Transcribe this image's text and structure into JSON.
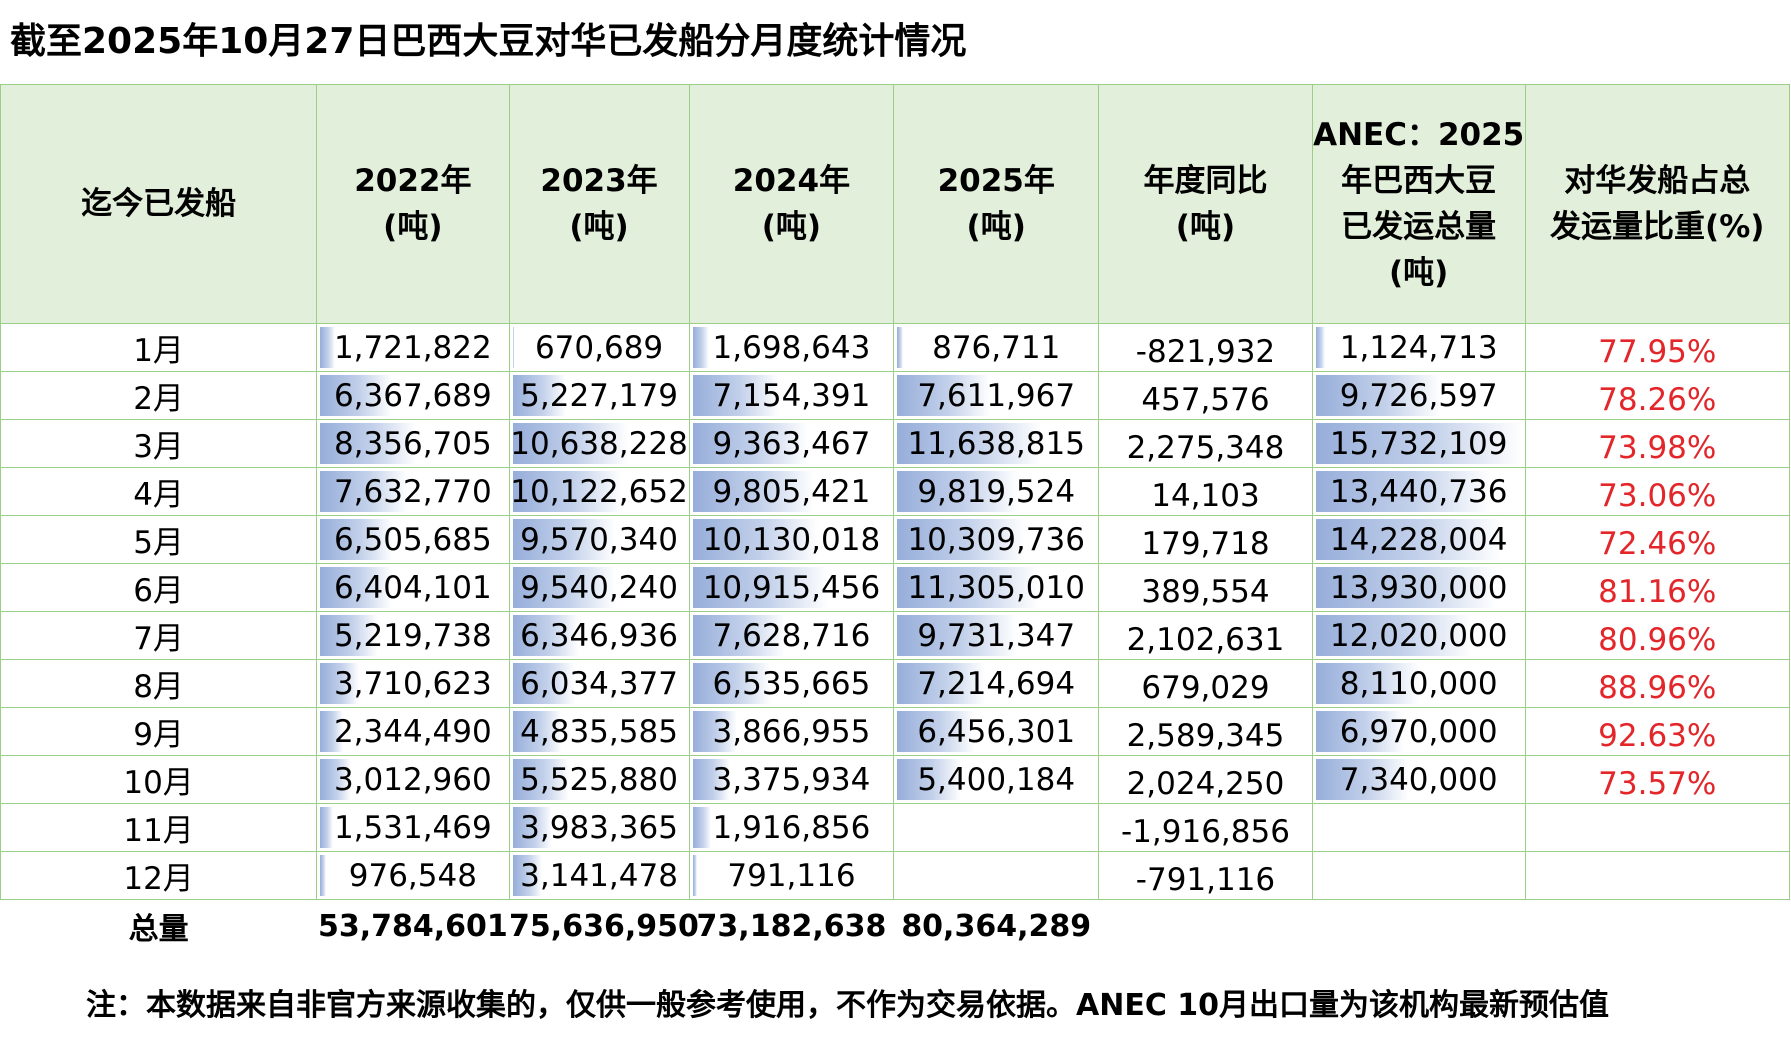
{
  "title": "截至2025年10月27日巴西大豆对华已发船分月度统计情况",
  "headers": [
    [
      "迄今已发船"
    ],
    [
      "2022年",
      "(吨)"
    ],
    [
      "2023年",
      "(吨)"
    ],
    [
      "2024年",
      "(吨)"
    ],
    [
      "2025年",
      "(吨)"
    ],
    [
      "年度同比",
      "(吨)"
    ],
    [
      "ANEC：2025",
      "年巴西大豆",
      "已发运总量",
      "(吨)"
    ],
    [
      "对华发船占总",
      "发运量比重(%)"
    ]
  ],
  "rows": [
    {
      "month": "1月",
      "y2022": "1,721,822",
      "y2023": "670,689",
      "y2024": "1,698,643",
      "y2025": "876,711",
      "yoy": "-821,932",
      "anec": "1,124,713",
      "pct": "77.95%"
    },
    {
      "month": "2月",
      "y2022": "6,367,689",
      "y2023": "5,227,179",
      "y2024": "7,154,391",
      "y2025": "7,611,967",
      "yoy": "457,576",
      "anec": "9,726,597",
      "pct": "78.26%"
    },
    {
      "month": "3月",
      "y2022": "8,356,705",
      "y2023": "10,638,228",
      "y2024": "9,363,467",
      "y2025": "11,638,815",
      "yoy": "2,275,348",
      "anec": "15,732,109",
      "pct": "73.98%"
    },
    {
      "month": "4月",
      "y2022": "7,632,770",
      "y2023": "10,122,652",
      "y2024": "9,805,421",
      "y2025": "9,819,524",
      "yoy": "14,103",
      "anec": "13,440,736",
      "pct": "73.06%"
    },
    {
      "month": "5月",
      "y2022": "6,505,685",
      "y2023": "9,570,340",
      "y2024": "10,130,018",
      "y2025": "10,309,736",
      "yoy": "179,718",
      "anec": "14,228,004",
      "pct": "72.46%"
    },
    {
      "month": "6月",
      "y2022": "6,404,101",
      "y2023": "9,540,240",
      "y2024": "10,915,456",
      "y2025": "11,305,010",
      "yoy": "389,554",
      "anec": "13,930,000",
      "pct": "81.16%"
    },
    {
      "month": "7月",
      "y2022": "5,219,738",
      "y2023": "6,346,936",
      "y2024": "7,628,716",
      "y2025": "9,731,347",
      "yoy": "2,102,631",
      "anec": "12,020,000",
      "pct": "80.96%"
    },
    {
      "month": "8月",
      "y2022": "3,710,623",
      "y2023": "6,034,377",
      "y2024": "6,535,665",
      "y2025": "7,214,694",
      "yoy": "679,029",
      "anec": "8,110,000",
      "pct": "88.96%"
    },
    {
      "month": "9月",
      "y2022": "2,344,490",
      "y2023": "4,835,585",
      "y2024": "3,866,955",
      "y2025": "6,456,301",
      "yoy": "2,589,345",
      "anec": "6,970,000",
      "pct": "92.63%"
    },
    {
      "month": "10月",
      "y2022": "3,012,960",
      "y2023": "5,525,880",
      "y2024": "3,375,934",
      "y2025": "5,400,184",
      "yoy": "2,024,250",
      "anec": "7,340,000",
      "pct": "73.57%"
    },
    {
      "month": "11月",
      "y2022": "1,531,469",
      "y2023": "3,983,365",
      "y2024": "1,916,856",
      "y2025": "",
      "yoy": "-1,916,856",
      "anec": "",
      "pct": ""
    },
    {
      "month": "12月",
      "y2022": "976,548",
      "y2023": "3,141,478",
      "y2024": "791,116",
      "y2025": "",
      "yoy": "-791,116",
      "anec": "",
      "pct": ""
    }
  ],
  "total": {
    "label": "总量",
    "y2022": "53,784,601",
    "y2023": "75,636,950",
    "y2024": "73,182,638",
    "y2025": "80,364,289"
  },
  "note": "注：本数据来自非官方来源收集的，仅供一般参考使用，不作为交易依据。ANEC 10月出口量为该机构最新预估值",
  "colors": {
    "header_bg": "#e2efda",
    "border": "#9ccf85",
    "bar": "#97aeda",
    "pct_text": "#e3262a"
  }
}
